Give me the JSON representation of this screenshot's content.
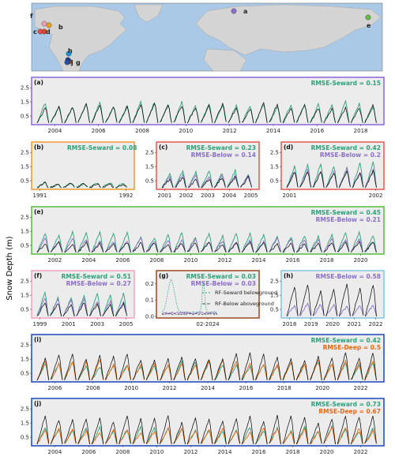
{
  "colors": {
    "seward": "#2ca07a",
    "below": "#8a6fc4",
    "deep": "#e8680e",
    "obs": "#000000",
    "panel_bg": "#ececec",
    "ocean": "#a9c9e6",
    "land": "#d4d4d4"
  },
  "y_axis_label": "Snow Depth (m)",
  "map": {
    "site_labels": [
      {
        "id": "a",
        "color": "#8a6fc4"
      },
      {
        "id": "b",
        "color": "#e8a020"
      },
      {
        "id": "c",
        "color": "#e05050"
      },
      {
        "id": "d",
        "color": "#d84a30"
      },
      {
        "id": "e",
        "color": "#5fc040"
      },
      {
        "id": "f",
        "color": "#ee9fbe"
      },
      {
        "id": "g",
        "color": "#9a4a1a"
      },
      {
        "id": "h",
        "color": "#1f8fd0"
      },
      {
        "id": "i",
        "color": "#203a8a"
      },
      {
        "id": "j",
        "color": "#2050a8"
      }
    ]
  },
  "chart_data": [
    {
      "id": "a",
      "type": "line",
      "label": "(a)",
      "border_color": "#9370db",
      "ylim": [
        0,
        2.9
      ],
      "yticks": [
        "0.5",
        "1.5",
        "2.5"
      ],
      "xticks": [
        "2004",
        "2006",
        "2008",
        "2010",
        "2012",
        "2014",
        "2016",
        "2018"
      ],
      "rmse": [
        {
          "text": "RMSE-Seward = 0.15",
          "color": "#2ca07a"
        }
      ],
      "series": [
        {
          "model": "seward",
          "peak": 1.6
        }
      ],
      "obs_peak": 1.45
    },
    {
      "id": "b",
      "type": "line",
      "label": "(b)",
      "border_color": "#f2a03a",
      "ylim": [
        0,
        2.9
      ],
      "yticks": [
        "0.5",
        "1.5",
        "2.5"
      ],
      "xticks": [
        "1991",
        "1992"
      ],
      "rmse": [
        {
          "text": "RMSE-Seward = 0.08",
          "color": "#2ca07a"
        }
      ],
      "series": [
        {
          "model": "seward",
          "peak": 0.4
        }
      ],
      "obs_peak": 0.35
    },
    {
      "id": "c",
      "type": "line",
      "label": "(c)",
      "border_color": "#e8605a",
      "ylim": [
        0,
        2.9
      ],
      "yticks": [
        "0.5",
        "1.5",
        "2.5"
      ],
      "xticks": [
        "2001",
        "2002",
        "2003",
        "2004",
        "2005"
      ],
      "rmse": [
        {
          "text": "RMSE-Seward = 0.23",
          "color": "#2ca07a"
        },
        {
          "text": "RMSE-Below = 0.14",
          "color": "#8a6fc4"
        }
      ],
      "series": [
        {
          "model": "seward",
          "peak": 1.3
        },
        {
          "model": "below",
          "peak": 0.95
        }
      ],
      "obs_peak": 0.8
    },
    {
      "id": "d",
      "type": "line",
      "label": "(d)",
      "border_color": "#e8605a",
      "ylim": [
        0,
        2.9
      ],
      "yticks": [
        "0.5",
        "1.5",
        "2.5"
      ],
      "xticks": [
        "2001",
        "2002"
      ],
      "rmse": [
        {
          "text": "RMSE-Seward = 0.42",
          "color": "#2ca07a"
        },
        {
          "text": "RMSE-Below = 0.2",
          "color": "#8a6fc4"
        }
      ],
      "series": [
        {
          "model": "seward",
          "peak": 1.9
        },
        {
          "model": "below",
          "peak": 1.5
        }
      ],
      "obs_peak": 1.2
    },
    {
      "id": "e",
      "type": "line",
      "label": "(e)",
      "border_color": "#5fbf4a",
      "ylim": [
        0,
        2.9
      ],
      "yticks": [
        "0.5",
        "1.5",
        "2.5"
      ],
      "xticks": [
        "2002",
        "2004",
        "2006",
        "2008",
        "2010",
        "2012",
        "2014",
        "2016",
        "2018",
        "2020"
      ],
      "rmse": [
        {
          "text": "RMSE-Seward = 0.45",
          "color": "#2ca07a"
        },
        {
          "text": "RMSE-Below = 0.21",
          "color": "#8a6fc4"
        }
      ],
      "series": [
        {
          "model": "seward",
          "peak": 1.5
        },
        {
          "model": "below",
          "peak": 1.05
        }
      ],
      "obs_peak": 0.8
    },
    {
      "id": "f",
      "type": "line",
      "label": "(f)",
      "border_color": "#f4a6c0",
      "ylim": [
        0,
        2.9
      ],
      "yticks": [
        "0.5",
        "1.5",
        "2.5"
      ],
      "xticks": [
        "1999",
        "2001",
        "2003",
        "2005"
      ],
      "rmse": [
        {
          "text": "RMSE-Seward = 0.51",
          "color": "#2ca07a"
        },
        {
          "text": "RMSE-Below = 0.27",
          "color": "#8a6fc4"
        }
      ],
      "series": [
        {
          "model": "seward",
          "peak": 1.8
        },
        {
          "model": "below",
          "peak": 1.4
        }
      ],
      "obs_peak": 1.1
    },
    {
      "id": "g",
      "type": "line",
      "label": "(g)",
      "border_color": "#a0522d",
      "ylim": [
        0,
        0.25
      ],
      "yticks": [
        "0.0",
        "0.1",
        "0.2"
      ],
      "xticks": [
        "02-2024"
      ],
      "rmse": [
        {
          "text": "RMSE-Seward = 0.03",
          "color": "#2ca07a"
        },
        {
          "text": "RMSE-Below = 0.03",
          "color": "#8a6fc4"
        }
      ],
      "legend": [
        {
          "text": "RF-Seward belowground",
          "color": "#2ca07a",
          "dash": "2,2"
        },
        {
          "text": "RF-Below aboveground",
          "color": "#555555",
          "dash": "4,2"
        }
      ]
    },
    {
      "id": "h",
      "type": "line",
      "label": "(h)",
      "border_color": "#88c8e0",
      "ylim": [
        0,
        2.9
      ],
      "yticks": [
        "0.5",
        "1.5",
        "2.5"
      ],
      "xticks": [
        "2018",
        "2019",
        "2020",
        "2021",
        "2022"
      ],
      "rmse": [
        {
          "text": "RMSE-Below = 0.58",
          "color": "#8a6fc4"
        }
      ],
      "series": [
        {
          "model": "below",
          "peak": 1.0
        }
      ],
      "obs_peak": 2.6
    },
    {
      "id": "i",
      "type": "line",
      "label": "(i)",
      "border_color": "#2a52be",
      "ylim": [
        0,
        2.9
      ],
      "yticks": [
        "0.5",
        "1.5",
        "2.5"
      ],
      "xticks": [
        "2006",
        "2008",
        "2010",
        "2012",
        "2014",
        "2016",
        "2018",
        "2020",
        "2022"
      ],
      "rmse": [
        {
          "text": "RMSE-Seward = 0.42",
          "color": "#2ca07a"
        },
        {
          "text": "RMSE-Deep = 0.5",
          "color": "#e8680e"
        }
      ],
      "series": [
        {
          "model": "seward",
          "peak": 1.4
        },
        {
          "model": "deep",
          "peak": 1.5
        }
      ],
      "obs_peak": 2.0
    },
    {
      "id": "j",
      "type": "line",
      "label": "(j)",
      "border_color": "#2a52be",
      "ylim": [
        0,
        2.9
      ],
      "yticks": [
        "0.5",
        "1.5",
        "2.5"
      ],
      "xticks": [
        "2004",
        "2006",
        "2008",
        "2010",
        "2012",
        "2014",
        "2016",
        "2018",
        "2020",
        "2022"
      ],
      "rmse": [
        {
          "text": "RMSE-Seward = 0.73",
          "color": "#2ca07a"
        },
        {
          "text": "RMSE-Deep = 0.67",
          "color": "#e8680e"
        }
      ],
      "series": [
        {
          "model": "seward",
          "peak": 1.3
        },
        {
          "model": "deep",
          "peak": 1.2
        }
      ],
      "obs_peak": 2.1
    }
  ]
}
